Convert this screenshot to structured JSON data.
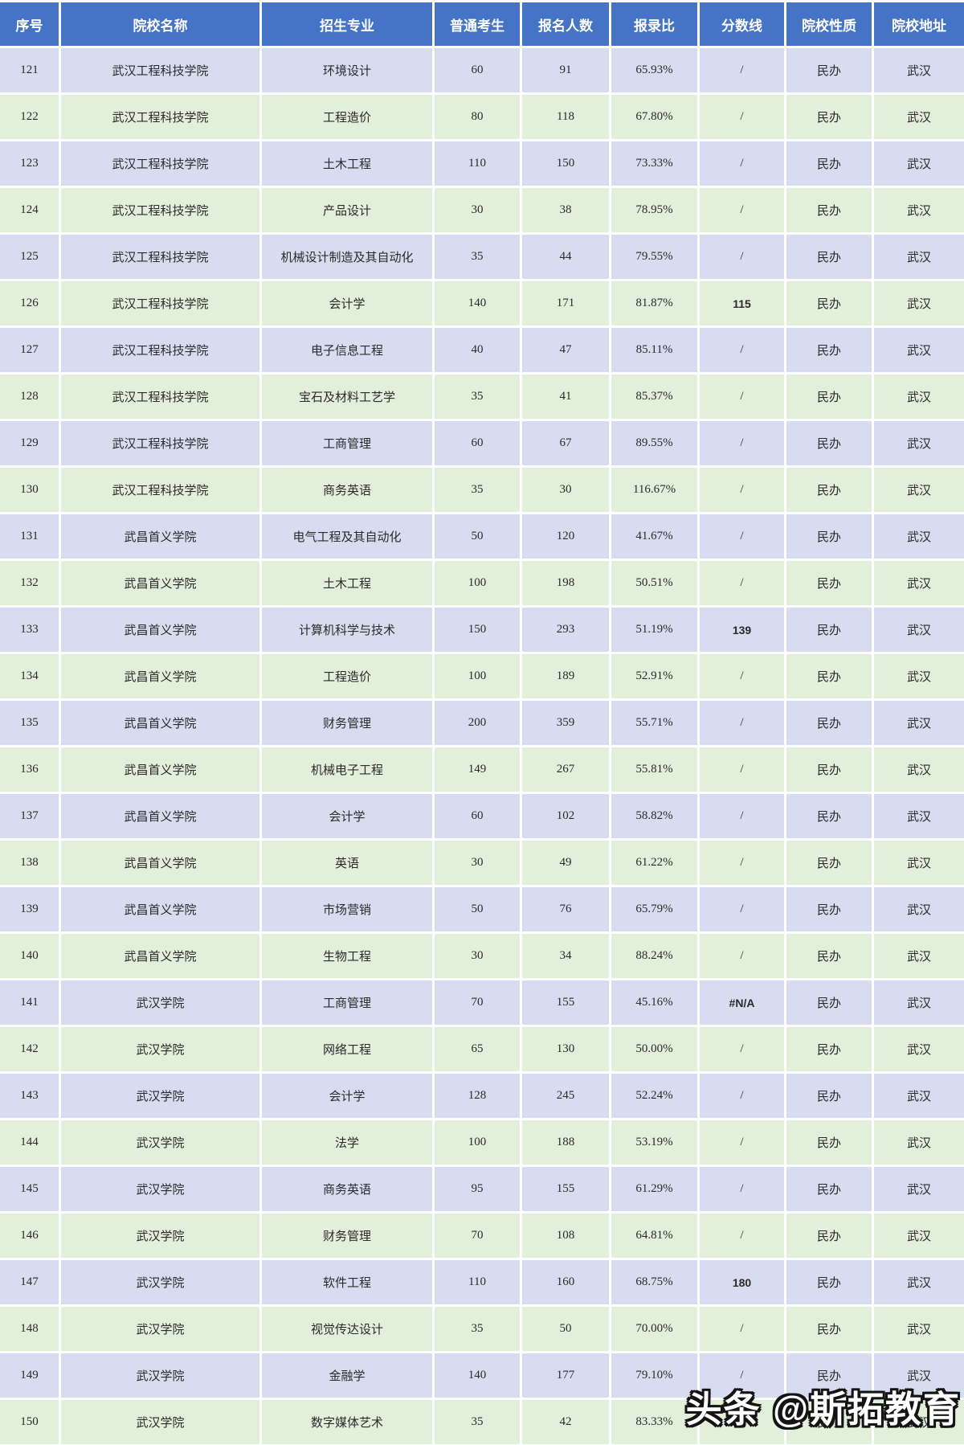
{
  "chart_data": {
    "type": "table",
    "title": "",
    "columns": [
      "序号",
      "院校名称",
      "招生专业",
      "普通考生",
      "报名人数",
      "报录比",
      "分数线",
      "院校性质",
      "院校地址"
    ],
    "rows": [
      [
        121,
        "武汉工程科技学院",
        "环境设计",
        "60",
        "91",
        "65.93%",
        "/",
        "民办",
        "武汉"
      ],
      [
        122,
        "武汉工程科技学院",
        "工程造价",
        "80",
        "118",
        "67.80%",
        "/",
        "民办",
        "武汉"
      ],
      [
        123,
        "武汉工程科技学院",
        "土木工程",
        "110",
        "150",
        "73.33%",
        "/",
        "民办",
        "武汉"
      ],
      [
        124,
        "武汉工程科技学院",
        "产品设计",
        "30",
        "38",
        "78.95%",
        "/",
        "民办",
        "武汉"
      ],
      [
        125,
        "武汉工程科技学院",
        "机械设计制造及其自动化",
        "35",
        "44",
        "79.55%",
        "/",
        "民办",
        "武汉"
      ],
      [
        126,
        "武汉工程科技学院",
        "会计学",
        "140",
        "171",
        "81.87%",
        "115",
        "民办",
        "武汉"
      ],
      [
        127,
        "武汉工程科技学院",
        "电子信息工程",
        "40",
        "47",
        "85.11%",
        "/",
        "民办",
        "武汉"
      ],
      [
        128,
        "武汉工程科技学院",
        "宝石及材料工艺学",
        "35",
        "41",
        "85.37%",
        "/",
        "民办",
        "武汉"
      ],
      [
        129,
        "武汉工程科技学院",
        "工商管理",
        "60",
        "67",
        "89.55%",
        "/",
        "民办",
        "武汉"
      ],
      [
        130,
        "武汉工程科技学院",
        "商务英语",
        "35",
        "30",
        "116.67%",
        "/",
        "民办",
        "武汉"
      ],
      [
        131,
        "武昌首义学院",
        "电气工程及其自动化",
        "50",
        "120",
        "41.67%",
        "/",
        "民办",
        "武汉"
      ],
      [
        132,
        "武昌首义学院",
        "土木工程",
        "100",
        "198",
        "50.51%",
        "/",
        "民办",
        "武汉"
      ],
      [
        133,
        "武昌首义学院",
        "计算机科学与技术",
        "150",
        "293",
        "51.19%",
        "139",
        "民办",
        "武汉"
      ],
      [
        134,
        "武昌首义学院",
        "工程造价",
        "100",
        "189",
        "52.91%",
        "/",
        "民办",
        "武汉"
      ],
      [
        135,
        "武昌首义学院",
        "财务管理",
        "200",
        "359",
        "55.71%",
        "/",
        "民办",
        "武汉"
      ],
      [
        136,
        "武昌首义学院",
        "机械电子工程",
        "149",
        "267",
        "55.81%",
        "/",
        "民办",
        "武汉"
      ],
      [
        137,
        "武昌首义学院",
        "会计学",
        "60",
        "102",
        "58.82%",
        "/",
        "民办",
        "武汉"
      ],
      [
        138,
        "武昌首义学院",
        "英语",
        "30",
        "49",
        "61.22%",
        "/",
        "民办",
        "武汉"
      ],
      [
        139,
        "武昌首义学院",
        "市场营销",
        "50",
        "76",
        "65.79%",
        "/",
        "民办",
        "武汉"
      ],
      [
        140,
        "武昌首义学院",
        "生物工程",
        "30",
        "34",
        "88.24%",
        "/",
        "民办",
        "武汉"
      ],
      [
        141,
        "武汉学院",
        "工商管理",
        "70",
        "155",
        "45.16%",
        "#N/A",
        "民办",
        "武汉"
      ],
      [
        142,
        "武汉学院",
        "网络工程",
        "65",
        "130",
        "50.00%",
        "/",
        "民办",
        "武汉"
      ],
      [
        143,
        "武汉学院",
        "会计学",
        "128",
        "245",
        "52.24%",
        "/",
        "民办",
        "武汉"
      ],
      [
        144,
        "武汉学院",
        "法学",
        "100",
        "188",
        "53.19%",
        "/",
        "民办",
        "武汉"
      ],
      [
        145,
        "武汉学院",
        "商务英语",
        "95",
        "155",
        "61.29%",
        "/",
        "民办",
        "武汉"
      ],
      [
        146,
        "武汉学院",
        "财务管理",
        "70",
        "108",
        "64.81%",
        "/",
        "民办",
        "武汉"
      ],
      [
        147,
        "武汉学院",
        "软件工程",
        "110",
        "160",
        "68.75%",
        "180",
        "民办",
        "武汉"
      ],
      [
        148,
        "武汉学院",
        "视觉传达设计",
        "35",
        "50",
        "70.00%",
        "/",
        "民办",
        "武汉"
      ],
      [
        149,
        "武汉学院",
        "金融学",
        "140",
        "177",
        "79.10%",
        "/",
        "民办",
        "武汉"
      ],
      [
        150,
        "武汉学院",
        "数字媒体艺术",
        "35",
        "42",
        "83.33%",
        "/",
        "民办",
        "武汉"
      ]
    ],
    "layout_hints": {
      "header_bg": "#4573C5",
      "row_odd_bg": "#D8DCF0",
      "row_even_bg": "#E2EFDA",
      "score_color": "#FE1010",
      "grid_line_color": "#FFFFFF"
    }
  },
  "watermark": {
    "text": "头条 @斯拓教育"
  }
}
